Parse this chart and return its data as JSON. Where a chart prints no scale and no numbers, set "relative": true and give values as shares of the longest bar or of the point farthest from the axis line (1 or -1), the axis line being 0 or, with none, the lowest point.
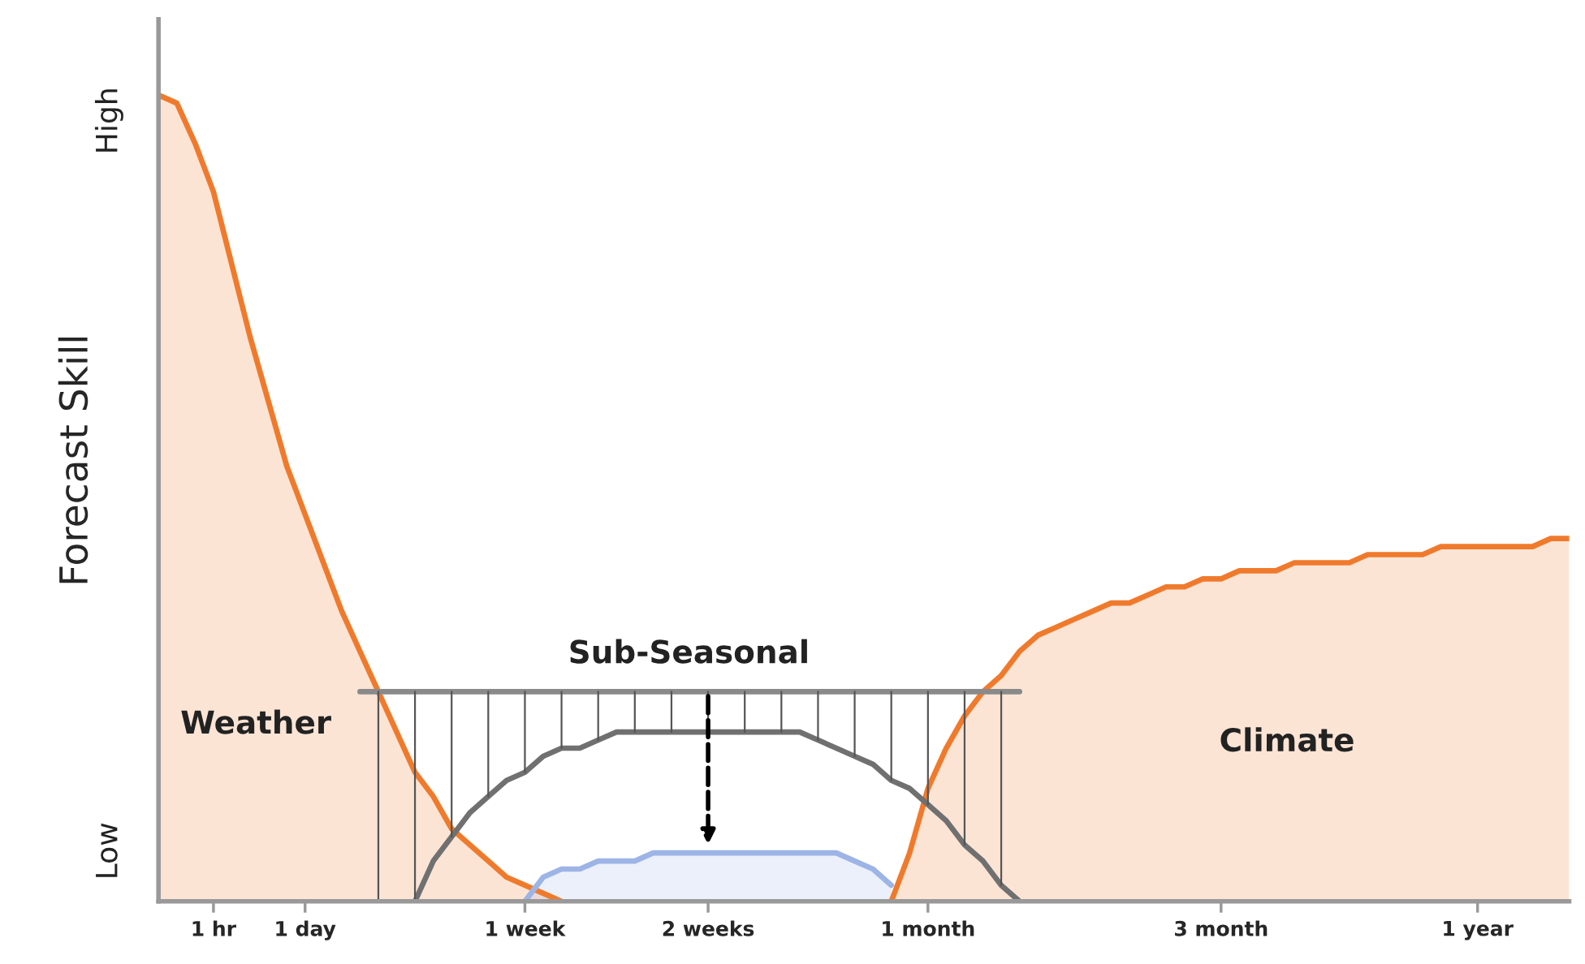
{
  "chart_data": {
    "type": "area",
    "ylabel": "Forecast Skill",
    "relative": true,
    "grid": false,
    "categories": [
      null,
      null,
      null,
      "1 hr",
      null,
      null,
      null,
      null,
      "1 day",
      null,
      null,
      null,
      null,
      null,
      null,
      null,
      null,
      null,
      null,
      null,
      "1 week",
      null,
      null,
      null,
      null,
      null,
      null,
      null,
      null,
      null,
      "2 weeks",
      null,
      null,
      null,
      null,
      null,
      null,
      null,
      null,
      null,
      null,
      null,
      "1 month",
      null,
      null,
      null,
      null,
      null,
      null,
      null,
      null,
      null,
      null,
      null,
      null,
      null,
      null,
      null,
      "3 month",
      null,
      null,
      null,
      null,
      null,
      null,
      null,
      null,
      null,
      null,
      null,
      null,
      null,
      "1 year",
      null,
      null,
      null,
      null,
      null
    ],
    "series": [
      {
        "color": "#f07a2c",
        "values": [
          1,
          0.99,
          0.94,
          0.88,
          0.79,
          0.7,
          0.62,
          0.54,
          0.48,
          0.42,
          0.36,
          0.31,
          0.26,
          0.21,
          0.16,
          0.13,
          0.09,
          0.07,
          0.05,
          0.03,
          0.02,
          0.01,
          0,
          null,
          null,
          null,
          null,
          null,
          null,
          null,
          null,
          null,
          null,
          null,
          null,
          null,
          null,
          null,
          null,
          null,
          null,
          null,
          null,
          null,
          null,
          null,
          null,
          null,
          null,
          null,
          null,
          null,
          null,
          null,
          null,
          null,
          null,
          null,
          null,
          null,
          null,
          null,
          null,
          null,
          null,
          null,
          null,
          null,
          null,
          null,
          null,
          null,
          null,
          null,
          null,
          null,
          null,
          null
        ]
      },
      {
        "color": "#f07a2c",
        "values": [
          null,
          null,
          null,
          null,
          null,
          null,
          null,
          null,
          null,
          null,
          null,
          null,
          null,
          null,
          null,
          null,
          null,
          null,
          null,
          null,
          null,
          null,
          null,
          null,
          null,
          null,
          null,
          null,
          null,
          null,
          null,
          null,
          null,
          null,
          null,
          null,
          null,
          null,
          null,
          null,
          0,
          0.06,
          0.14,
          0.19,
          0.23,
          0.26,
          0.28,
          0.31,
          0.33,
          0.34,
          0.35,
          0.36,
          0.37,
          0.37,
          0.38,
          0.39,
          0.39,
          0.4,
          0.4,
          0.41,
          0.41,
          0.41,
          0.42,
          0.42,
          0.42,
          0.42,
          0.43,
          0.43,
          0.43,
          0.43,
          0.44,
          0.44,
          0.44,
          0.44,
          0.44,
          0.44,
          0.45,
          0.45
        ]
      },
      {
        "color": "#9db4e6",
        "values": [
          null,
          null,
          null,
          null,
          null,
          null,
          null,
          null,
          null,
          null,
          null,
          null,
          null,
          null,
          null,
          null,
          null,
          null,
          null,
          null,
          0,
          0.03,
          0.04,
          0.04,
          0.05,
          0.05,
          0.05,
          0.06,
          0.06,
          0.06,
          0.06,
          0.06,
          0.06,
          0.06,
          0.06,
          0.06,
          0.06,
          0.06,
          0.05,
          0.04,
          0.02,
          null,
          null,
          null,
          null,
          null,
          null,
          null,
          null,
          null,
          null,
          null,
          null,
          null,
          null,
          null,
          null,
          null,
          null,
          null,
          null,
          null,
          null,
          null,
          null,
          null,
          null,
          null,
          null,
          null,
          null,
          null,
          null,
          null,
          null,
          null,
          null,
          null
        ]
      },
      {
        "type": "line",
        "color": "#707070",
        "values": [
          null,
          null,
          null,
          null,
          null,
          null,
          null,
          null,
          null,
          null,
          null,
          null,
          null,
          null,
          0,
          0.05,
          0.08,
          0.11,
          0.13,
          0.15,
          0.16,
          0.18,
          0.19,
          0.19,
          0.2,
          0.21,
          0.21,
          0.21,
          0.21,
          0.21,
          0.21,
          0.21,
          0.21,
          0.21,
          0.21,
          0.21,
          0.2,
          0.19,
          0.18,
          0.17,
          0.15,
          0.14,
          0.12,
          0.1,
          0.07,
          0.05,
          0.02,
          0,
          null,
          null,
          null,
          null,
          null,
          null,
          null,
          null,
          null,
          null,
          null,
          null,
          null,
          null,
          null,
          null,
          null,
          null,
          null,
          null,
          null,
          null,
          null,
          null,
          null,
          null,
          null,
          null,
          null,
          null
        ]
      },
      {
        "type": "line",
        "color": "#8a8a8a",
        "values": [
          null,
          null,
          null,
          null,
          null,
          null,
          null,
          null,
          null,
          null,
          null,
          0.26,
          0.26,
          0.26,
          0.26,
          0.26,
          0.26,
          0.26,
          0.26,
          0.26,
          0.26,
          0.26,
          0.26,
          0.26,
          0.26,
          0.26,
          0.26,
          0.26,
          0.26,
          0.26,
          0.26,
          0.26,
          0.26,
          0.26,
          0.26,
          0.26,
          0.26,
          0.26,
          0.26,
          0.26,
          0.26,
          0.26,
          0.26,
          0.26,
          0.26,
          0.26,
          0.26,
          0.26,
          null,
          null,
          null,
          null,
          null,
          null,
          null,
          null,
          null,
          null,
          null,
          null,
          null,
          null,
          null,
          null,
          null,
          null,
          null,
          null,
          null,
          null,
          null,
          null,
          null,
          null,
          null,
          null,
          null,
          null
        ]
      }
    ],
    "annotations": [
      "Low",
      "High",
      "Weather",
      "Sub-Seasonal",
      "Climate"
    ]
  }
}
